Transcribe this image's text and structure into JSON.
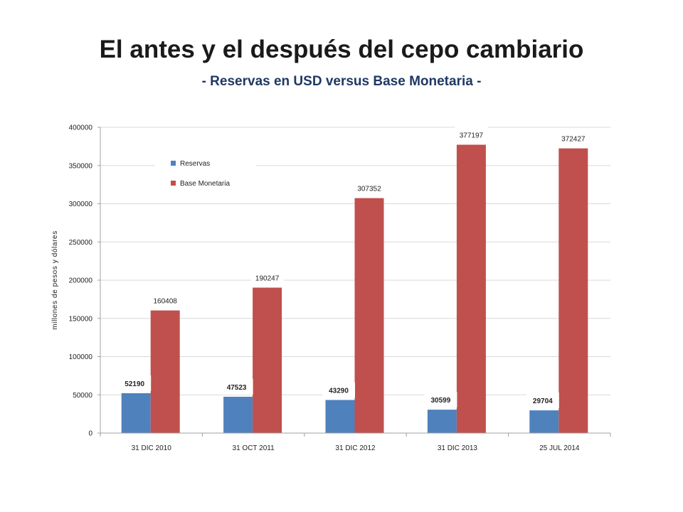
{
  "title": "El antes y el después del cepo cambiario",
  "subtitle": "- Reservas en USD versus Base Monetaria -",
  "colors": {
    "reservas": "#4f81bd",
    "base": "#c0504d",
    "grid": "#d9d9d9",
    "axis": "#a0a0a0"
  },
  "chart_data": {
    "type": "bar",
    "title": "",
    "xlabel": "",
    "ylabel": "millones de pesos y dólares",
    "ylim": [
      0,
      400000
    ],
    "yticks": [
      0,
      50000,
      100000,
      150000,
      200000,
      250000,
      300000,
      350000,
      400000
    ],
    "grid": true,
    "legend_position": "top-left",
    "categories": [
      "31 DIC 2010",
      "31 OCT 2011",
      "31 DIC 2012",
      "31 DIC 2013",
      "25 JUL 2014"
    ],
    "series": [
      {
        "name": "Reservas",
        "color": "#4f81bd",
        "values": [
          52190,
          47523,
          43290,
          30599,
          29704
        ]
      },
      {
        "name": "Base Monetaria",
        "color": "#c0504d",
        "values": [
          160408,
          190247,
          307352,
          377197,
          372427
        ]
      }
    ]
  }
}
